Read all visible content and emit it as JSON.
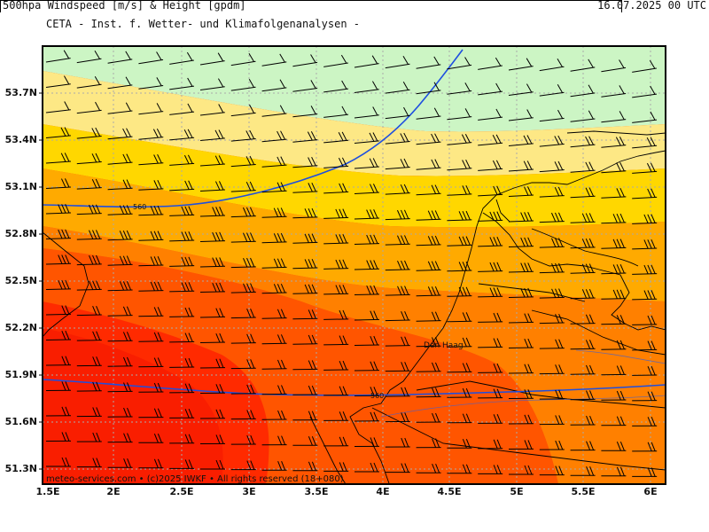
{
  "header": {
    "title": "CETA - Inst. f. Wetter- und Klimafolgenanalysen -",
    "subtitle": "500hpa Windspeed [m/s] & Height [gpdm]",
    "valid_time": "16.07.2025 00 UTC"
  },
  "footer": {
    "copyright": "meteo-services.com • (c)2025 IWKF • All rights reserved (18+080)"
  },
  "map": {
    "city_label": "Den Haag",
    "contour_labels": [
      "560",
      "560"
    ],
    "lat_ticks": [
      "53.7N",
      "53.4N",
      "53.1N",
      "52.8N",
      "52.5N",
      "52.2N",
      "51.9N",
      "51.6N",
      "51.3N"
    ],
    "lon_ticks": [
      "1.5E",
      "2E",
      "2.5E",
      "3E",
      "3.5E",
      "4E",
      "4.5E",
      "5E",
      "5.5E",
      "6E"
    ],
    "colors": {
      "band_10": "#ccf5c4",
      "band_15": "#fde885",
      "band_18": "#ffd700",
      "band_22": "#ffaa00",
      "band_26": "#ff8000",
      "band_30": "#ff5500",
      "band_34": "#ff2a00",
      "contour": "#1e4fe0",
      "coast": "#000000",
      "grid": "#aaaaaa"
    }
  }
}
